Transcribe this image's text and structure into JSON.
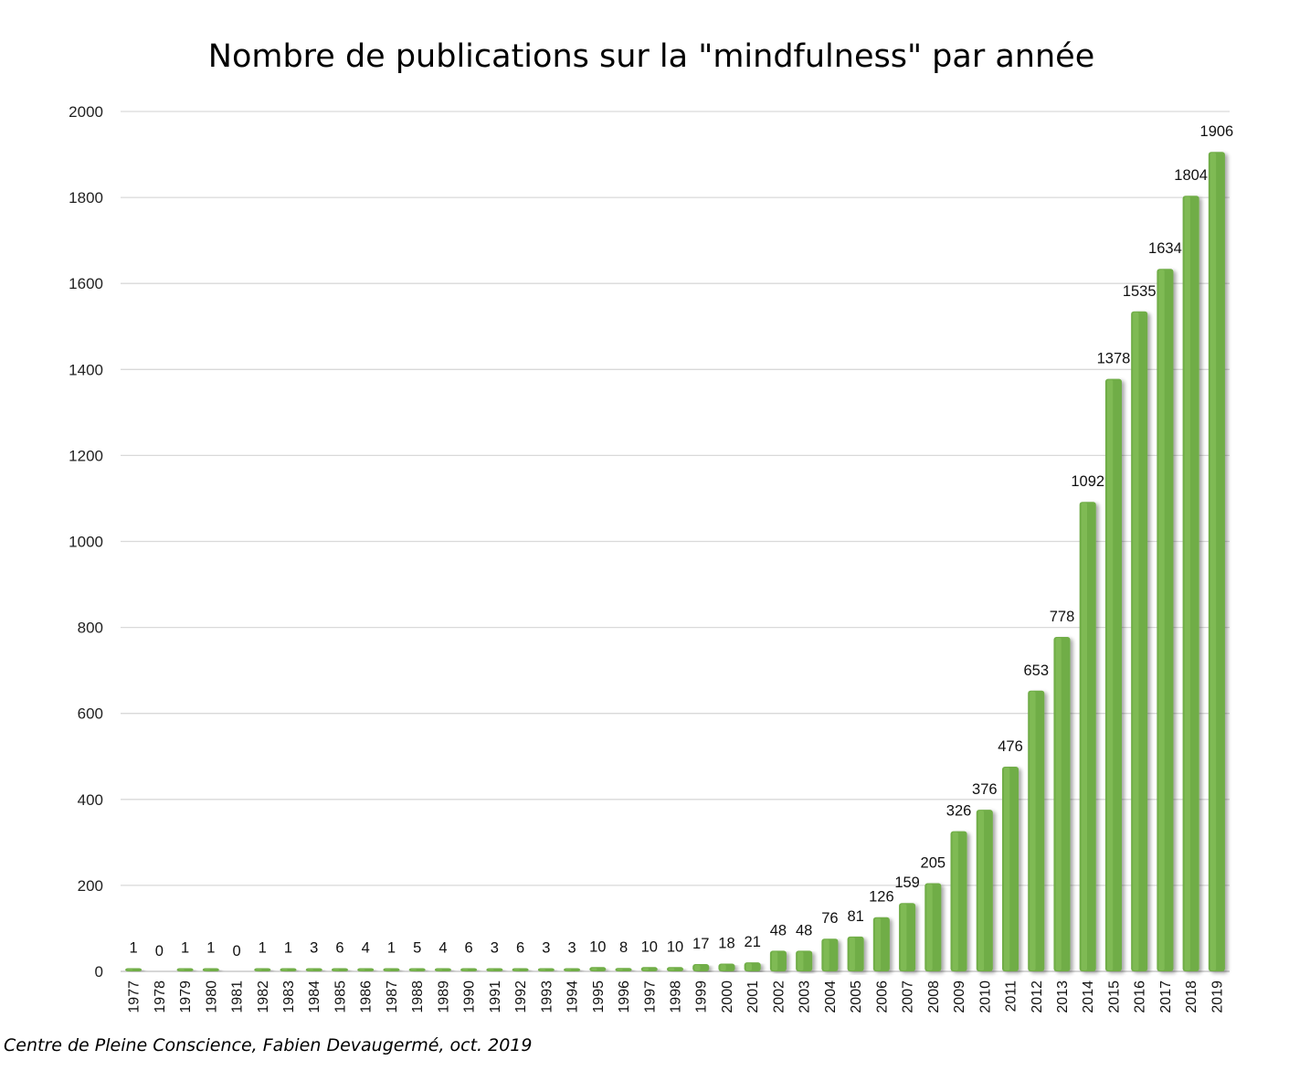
{
  "chart_data": {
    "type": "bar",
    "title": "Nombre de publications sur la \"mindfulness\" par année",
    "xlabel": "",
    "ylabel": "",
    "ylim": [
      0,
      2000
    ],
    "yticks": [
      0,
      200,
      400,
      600,
      800,
      1000,
      1200,
      1400,
      1600,
      1800,
      2000
    ],
    "grid": true,
    "legend": "none",
    "categories": [
      "1977",
      "1978",
      "1979",
      "1980",
      "1981",
      "1982",
      "1983",
      "1984",
      "1985",
      "1986",
      "1987",
      "1988",
      "1989",
      "1990",
      "1991",
      "1992",
      "1993",
      "1994",
      "1995",
      "1996",
      "1997",
      "1998",
      "1999",
      "2000",
      "2001",
      "2002",
      "2003",
      "2004",
      "2005",
      "2006",
      "2007",
      "2008",
      "2009",
      "2010",
      "2011",
      "2012",
      "2013",
      "2014",
      "2015",
      "2016",
      "2017",
      "2018",
      "2019"
    ],
    "values": [
      1,
      0,
      1,
      1,
      0,
      1,
      1,
      3,
      6,
      4,
      1,
      5,
      4,
      6,
      3,
      6,
      3,
      3,
      10,
      8,
      10,
      10,
      17,
      18,
      21,
      48,
      48,
      76,
      81,
      126,
      159,
      205,
      326,
      376,
      476,
      653,
      778,
      1092,
      1378,
      1535,
      1634,
      1804,
      1906
    ],
    "data_labels": [
      "1",
      "0",
      "1",
      "1",
      "0",
      "1",
      "1",
      "3",
      "6",
      "4",
      "1",
      "5",
      "4",
      "6",
      "3",
      "6",
      "3",
      "3",
      "10",
      "8",
      "10",
      "10",
      "17",
      "18",
      "21",
      "48",
      "48",
      "76",
      "81",
      "126",
      "159",
      "205",
      "326",
      "376",
      "476",
      "653",
      "778",
      "1092",
      "1378",
      "1535",
      "1634",
      "1804",
      "1906"
    ],
    "bar_color": "#70ad47",
    "bar_highlight_color": "#8cc45f",
    "shadow_color": "#c8c8c8",
    "gridline_color": "#d9d9d9"
  },
  "credit": "Centre de Pleine Conscience, Fabien Devaugermé, oct. 2019"
}
